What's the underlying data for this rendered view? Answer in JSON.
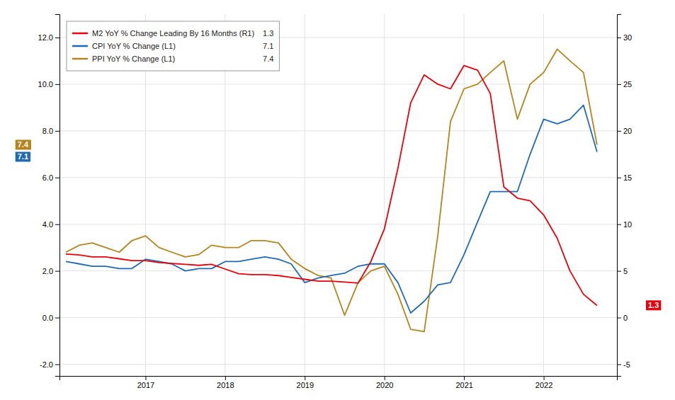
{
  "chart_data": {
    "type": "line",
    "x": [
      2016.0,
      2016.17,
      2016.33,
      2016.5,
      2016.67,
      2016.83,
      2017.0,
      2017.17,
      2017.33,
      2017.5,
      2017.67,
      2017.83,
      2018.0,
      2018.17,
      2018.33,
      2018.5,
      2018.67,
      2018.83,
      2019.0,
      2019.17,
      2019.33,
      2019.5,
      2019.67,
      2019.83,
      2020.0,
      2020.17,
      2020.33,
      2020.5,
      2020.67,
      2020.83,
      2021.0,
      2021.17,
      2021.33,
      2021.5,
      2021.67,
      2021.83,
      2022.0,
      2022.17,
      2022.33,
      2022.5,
      2022.67
    ],
    "series": [
      {
        "name": "M2 YoY % Change Leading By 16 Months (R1)",
        "color": "#e8000a",
        "axis": "y2",
        "legend_value": 1.3,
        "end_label": 1.3,
        "values": [
          6.8,
          6.7,
          6.5,
          6.5,
          6.3,
          6.1,
          6.1,
          5.9,
          5.8,
          5.7,
          5.6,
          5.7,
          5.2,
          4.7,
          4.6,
          4.6,
          4.5,
          4.3,
          4.1,
          3.9,
          3.9,
          3.8,
          3.7,
          6.0,
          9.5,
          16.0,
          23.0,
          26.0,
          25.0,
          24.5,
          27.0,
          26.5,
          24.0,
          14.0,
          12.8,
          12.5,
          11.0,
          8.5,
          5.0,
          2.5,
          1.3
        ]
      },
      {
        "name": "CPI YoY % Change (L1)",
        "color": "#1f6ab5",
        "axis": "y",
        "legend_value": 7.1,
        "end_label": 7.1,
        "values": [
          2.4,
          2.3,
          2.2,
          2.2,
          2.1,
          2.1,
          2.5,
          2.4,
          2.3,
          2.0,
          2.1,
          2.1,
          2.4,
          2.4,
          2.5,
          2.6,
          2.5,
          2.3,
          1.5,
          1.7,
          1.8,
          1.9,
          2.2,
          2.3,
          2.3,
          1.5,
          0.2,
          0.7,
          1.4,
          1.5,
          2.7,
          4.1,
          5.4,
          5.4,
          5.4,
          7.0,
          8.5,
          8.3,
          8.5,
          9.1,
          7.1
        ]
      },
      {
        "name": "PPI YoY % Change (L1)",
        "color": "#b5841a",
        "axis": "y",
        "legend_value": 7.4,
        "end_label": 7.4,
        "values": [
          2.8,
          3.1,
          3.2,
          3.0,
          2.8,
          3.3,
          3.5,
          3.0,
          2.8,
          2.6,
          2.7,
          3.1,
          3.0,
          3.0,
          3.3,
          3.3,
          3.2,
          2.5,
          2.1,
          1.8,
          1.7,
          0.1,
          1.5,
          2.0,
          2.2,
          1.0,
          -0.5,
          -0.6,
          3.5,
          8.4,
          9.8,
          10.0,
          10.5,
          11.0,
          8.5,
          10.0,
          10.5,
          11.5,
          11.0,
          10.5,
          7.4
        ]
      }
    ],
    "xlim": [
      2015.92,
      2022.92
    ],
    "xticks": [
      2017,
      2018,
      2019,
      2020,
      2021,
      2022
    ],
    "ylim": [
      -2.5,
      13.0
    ],
    "yticks": [
      {
        "value": -2.0,
        "label": "-2.0"
      },
      {
        "value": 0.0,
        "label": "0.0"
      },
      {
        "value": 2.0,
        "label": "2.0"
      },
      {
        "value": 4.0,
        "label": "4.0"
      },
      {
        "value": 6.0,
        "label": "6.0"
      },
      {
        "value": 8.0,
        "label": "8.0"
      },
      {
        "value": 10.0,
        "label": "10.0"
      },
      {
        "value": 12.0,
        "label": "12.0"
      }
    ],
    "y2lim": [
      -6.25,
      32.5
    ],
    "y2ticks": [
      -5,
      0,
      5,
      10,
      15,
      20,
      25,
      30
    ],
    "grid": true,
    "legend": "upper left"
  }
}
